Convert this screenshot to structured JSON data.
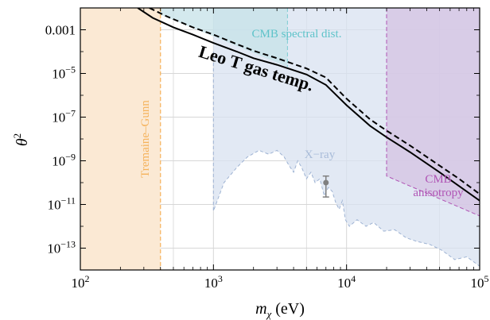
{
  "colors": {
    "tremaine_fill": "#fbe9d4",
    "tremaine_line": "#f5b25a",
    "xray_fill": "#d8e2f0",
    "xray_line": "#9eb3d3",
    "cmb_spec_fill": "#c5e2e8",
    "cmb_spec_line": "#7dccd2",
    "cmb_aniso_fill": "#d6c7e4",
    "cmb_aniso_line": "#b055b5",
    "grid": "#d7d7d7",
    "curve": "#000000",
    "point": "#808080"
  },
  "chart_data": {
    "type": "area",
    "title": "",
    "xlabel": "m",
    "xlabel_sub": "χ",
    "xlabel_unit": "(eV)",
    "ylabel": "θ",
    "ylabel_sup": "2",
    "xscale": "log",
    "yscale": "log",
    "xlim": [
      100,
      100000
    ],
    "ylim": [
      1e-14,
      0.01
    ],
    "grid": true,
    "x_ticks": [
      {
        "value": 100,
        "base": "10",
        "exp": "2"
      },
      {
        "value": 1000,
        "base": "10",
        "exp": "3"
      },
      {
        "value": 10000,
        "base": "10",
        "exp": "4"
      },
      {
        "value": 100000,
        "base": "10",
        "exp": "5"
      }
    ],
    "y_ticks": [
      {
        "value": 0.001,
        "plain": "0.001"
      },
      {
        "value": 1e-05,
        "base": "10",
        "exp": "−5"
      },
      {
        "value": 1e-07,
        "base": "10",
        "exp": "−7"
      },
      {
        "value": 1e-09,
        "base": "10",
        "exp": "−9"
      },
      {
        "value": 1e-11,
        "base": "10",
        "exp": "−11"
      },
      {
        "value": 1e-13,
        "base": "10",
        "exp": "−13"
      }
    ],
    "regions": [
      {
        "name": "Tremaine–Gunn",
        "x_max": 400
      },
      {
        "name": "X−ray",
        "boundary": [
          [
            1000,
            0.0001
          ],
          [
            1000,
            5e-12
          ],
          [
            1200,
            1e-10
          ],
          [
            1500,
            5e-10
          ],
          [
            1800,
            1.5e-09
          ],
          [
            2200,
            3e-09
          ],
          [
            2600,
            2e-09
          ],
          [
            3000,
            3e-09
          ],
          [
            3400,
            1.5e-09
          ],
          [
            3700,
            6e-10
          ],
          [
            4000,
            3e-10
          ],
          [
            4300,
            1e-09
          ],
          [
            4600,
            5e-10
          ],
          [
            5000,
            1.5e-10
          ],
          [
            5400,
            3e-10
          ],
          [
            5800,
            1e-10
          ],
          [
            6300,
            1.5e-10
          ],
          [
            6800,
            2.5e-11
          ],
          [
            7300,
            6e-11
          ],
          [
            7800,
            4e-11
          ],
          [
            8300,
            1.2e-11
          ],
          [
            8800,
            6e-12
          ],
          [
            9300,
            1.5e-11
          ],
          [
            9800,
            2e-12
          ],
          [
            10500,
            1e-12
          ],
          [
            12000,
            2e-12
          ],
          [
            14000,
            1e-12
          ],
          [
            16000,
            1.5e-12
          ],
          [
            19000,
            6e-13
          ],
          [
            23000,
            7e-13
          ],
          [
            28000,
            3e-13
          ],
          [
            34000,
            2e-13
          ],
          [
            42000,
            1.5e-13
          ],
          [
            52000,
            8e-14
          ],
          [
            65000,
            3e-14
          ],
          [
            80000,
            4e-14
          ],
          [
            100000,
            1.5e-14
          ]
        ]
      },
      {
        "name": "CMB spectral dist.",
        "x_min": 300,
        "x_max": 3600,
        "boundary": [
          [
            300,
            0.01
          ],
          [
            3600,
            0.01
          ],
          [
            3600,
            2e-05
          ],
          [
            1000,
            0.0005
          ],
          [
            300,
            0.01
          ]
        ]
      },
      {
        "name": "CMB\nanisotropy",
        "label_lines": [
          "CMB",
          "anisotropy"
        ],
        "x_min": 20000,
        "boundary": [
          [
            20000,
            0.01
          ],
          [
            100000,
            0.01
          ],
          [
            100000,
            3e-12
          ],
          [
            20000,
            2e-10
          ]
        ]
      }
    ],
    "series": [
      {
        "name": "Leo T gas temp.",
        "style": "solid",
        "points": [
          [
            270,
            0.01
          ],
          [
            350,
            0.0035
          ],
          [
            500,
            0.0013
          ],
          [
            700,
            0.0006
          ],
          [
            1000,
            0.00025
          ],
          [
            1500,
            0.0001
          ],
          [
            2000,
            5e-05
          ],
          [
            3000,
            2.5e-05
          ],
          [
            5000,
            9e-06
          ],
          [
            7000,
            3e-06
          ],
          [
            10000,
            3.5e-07
          ],
          [
            15000,
            4e-08
          ],
          [
            20000,
            1.2e-08
          ],
          [
            30000,
            2.5e-09
          ],
          [
            50000,
            3e-10
          ],
          [
            70000,
            7e-11
          ],
          [
            100000,
            1.5e-11
          ]
        ]
      },
      {
        "style": "dashed",
        "points": [
          [
            330,
            0.01
          ],
          [
            450,
            0.004
          ],
          [
            700,
            0.0013
          ],
          [
            1000,
            0.0006
          ],
          [
            1500,
            0.00022
          ],
          [
            2000,
            0.00011
          ],
          [
            3000,
            5e-05
          ],
          [
            5000,
            1.7e-05
          ],
          [
            7000,
            6.5e-06
          ],
          [
            10000,
            7e-07
          ],
          [
            15000,
            8e-08
          ],
          [
            20000,
            2.4e-08
          ],
          [
            30000,
            5e-09
          ],
          [
            50000,
            6e-10
          ],
          [
            70000,
            1.5e-10
          ],
          [
            100000,
            3e-11
          ]
        ]
      }
    ],
    "data_point": {
      "x": 7000,
      "y": 1e-10,
      "y_err_low": 2.2e-11,
      "y_err_high": 2e-10
    }
  }
}
